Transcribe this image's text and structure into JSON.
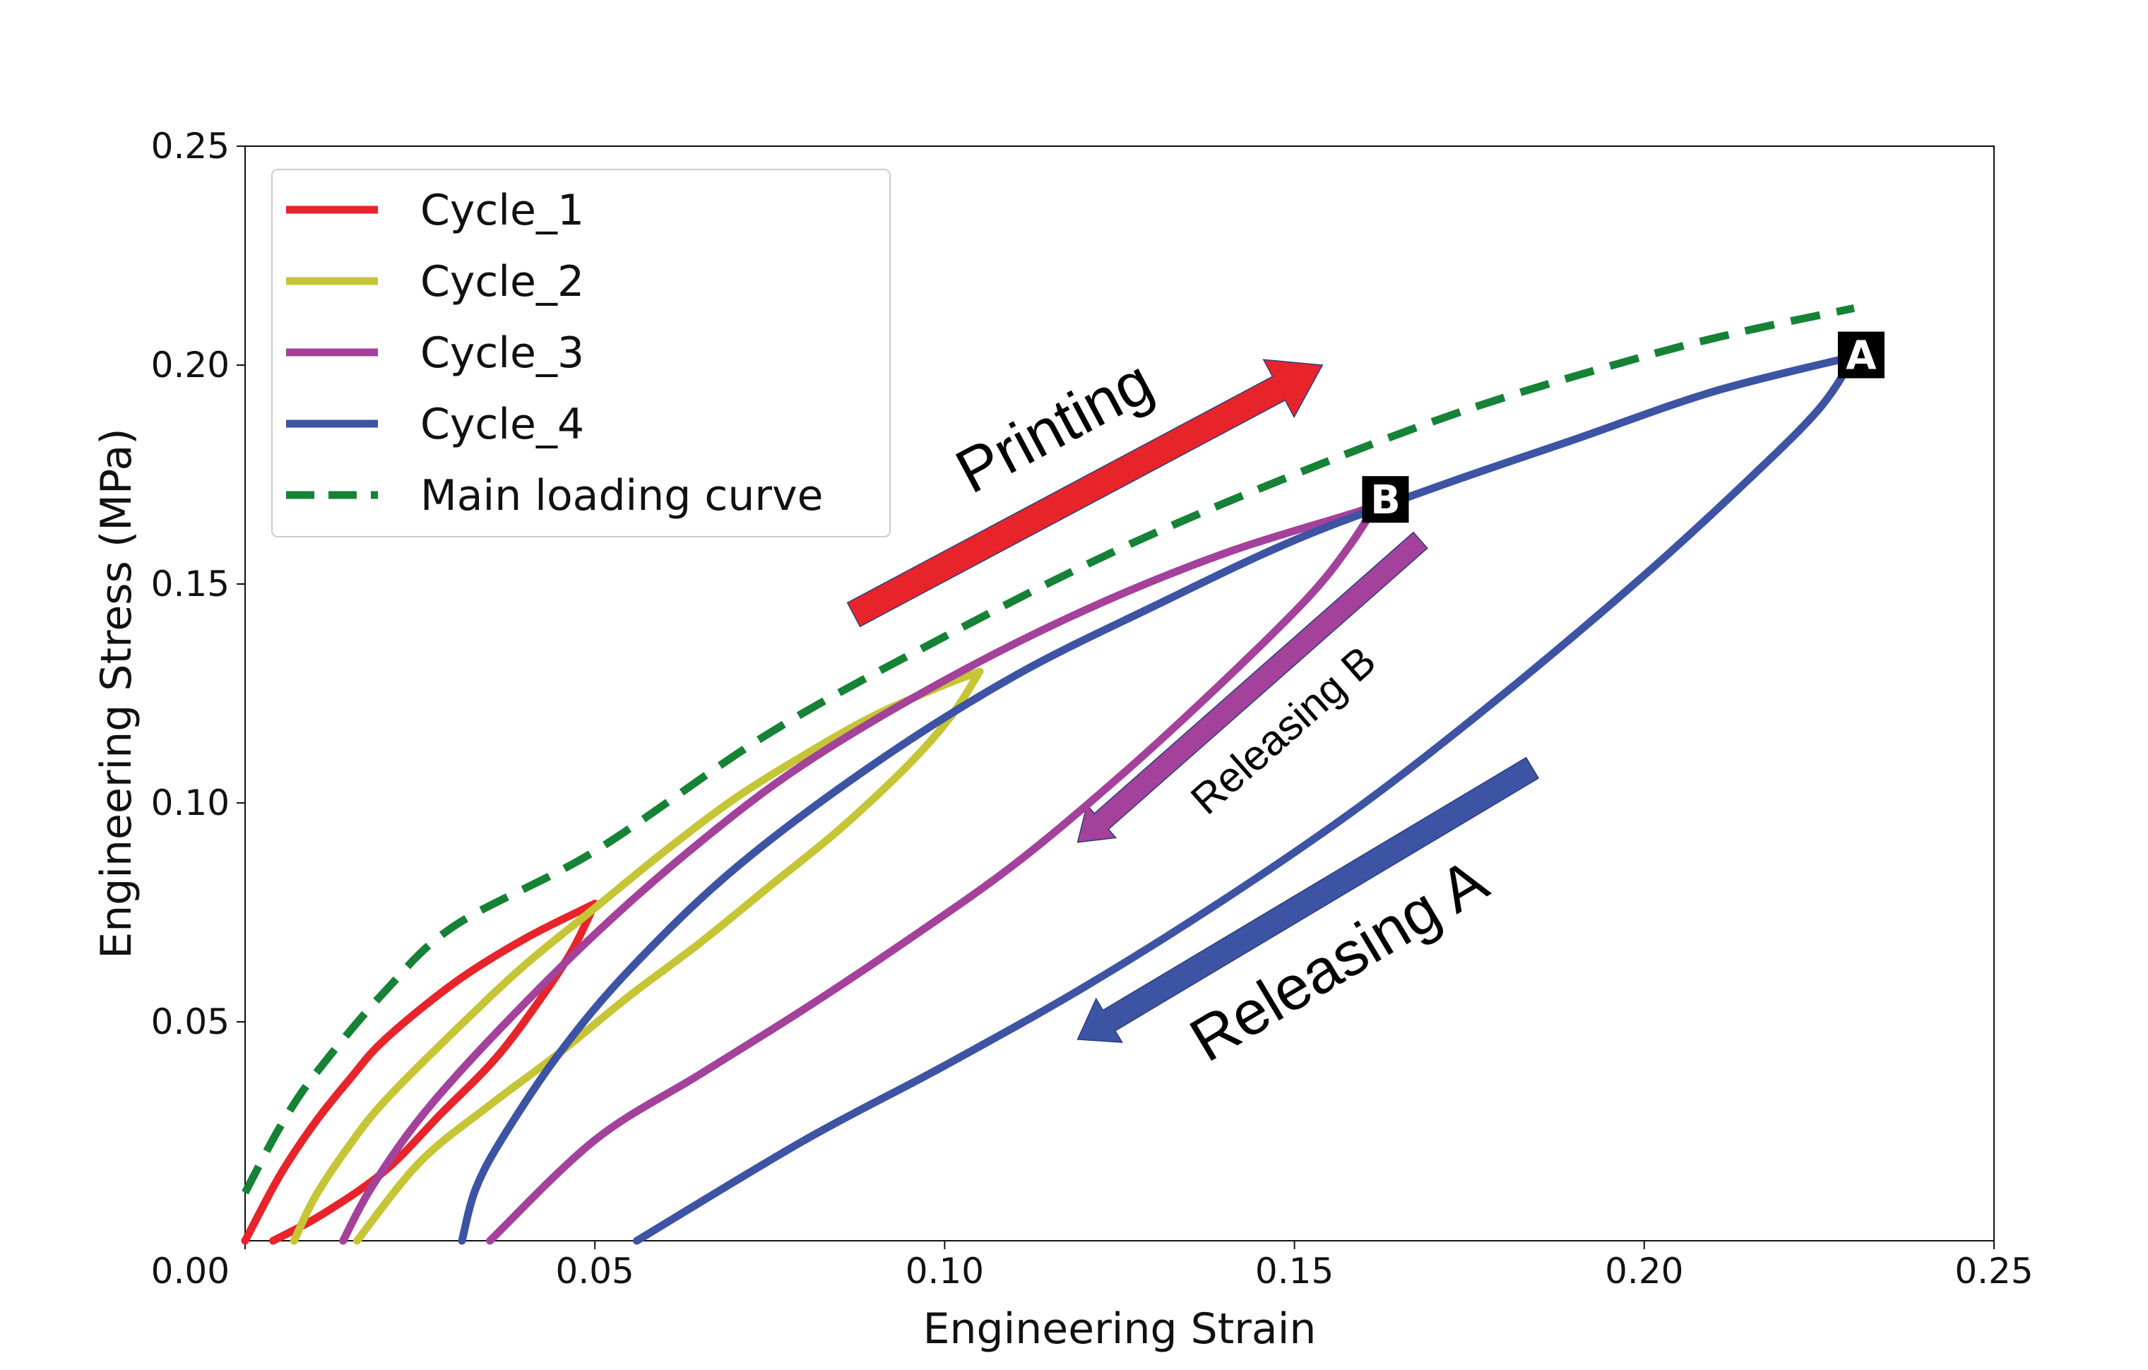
{
  "chart_data": {
    "type": "line",
    "title": "",
    "xlabel": "Engineering Strain",
    "ylabel": "Engineering Stress (MPa)",
    "xlim": [
      0,
      0.25
    ],
    "ylim": [
      0,
      0.25
    ],
    "xticks": [
      {
        "value": 0.05,
        "label": "0.05"
      },
      {
        "value": 0.1,
        "label": "0.10"
      },
      {
        "value": 0.15,
        "label": "0.15"
      },
      {
        "value": 0.2,
        "label": "0.20"
      },
      {
        "value": 0.25,
        "label": "0.25"
      }
    ],
    "yticks": [
      {
        "value": 0.05,
        "label": "0.05"
      },
      {
        "value": 0.1,
        "label": "0.10"
      },
      {
        "value": 0.15,
        "label": "0.15"
      },
      {
        "value": 0.2,
        "label": "0.20"
      },
      {
        "value": 0.25,
        "label": "0.25"
      }
    ],
    "origin_label": "0.00",
    "grid": false,
    "legend_position": "top-left",
    "series": [
      {
        "name": "Cycle_1",
        "color": "#e8242b",
        "style": "solid",
        "loading": [
          [
            0.0,
            0.0
          ],
          [
            0.005,
            0.015
          ],
          [
            0.01,
            0.027
          ],
          [
            0.015,
            0.037
          ],
          [
            0.02,
            0.046
          ],
          [
            0.03,
            0.059
          ],
          [
            0.04,
            0.069
          ],
          [
            0.05,
            0.077
          ]
        ],
        "unloading": [
          [
            0.05,
            0.077
          ],
          [
            0.047,
            0.067
          ],
          [
            0.043,
            0.057
          ],
          [
            0.036,
            0.042
          ],
          [
            0.028,
            0.029
          ],
          [
            0.02,
            0.016
          ],
          [
            0.011,
            0.006
          ],
          [
            0.004,
            0.0
          ]
        ]
      },
      {
        "name": "Cycle_2",
        "color": "#c5c536",
        "style": "solid",
        "loading": [
          [
            0.007,
            0.0
          ],
          [
            0.01,
            0.01
          ],
          [
            0.015,
            0.022
          ],
          [
            0.02,
            0.032
          ],
          [
            0.03,
            0.048
          ],
          [
            0.04,
            0.063
          ],
          [
            0.05,
            0.076
          ],
          [
            0.06,
            0.089
          ],
          [
            0.07,
            0.101
          ],
          [
            0.08,
            0.111
          ],
          [
            0.09,
            0.12
          ],
          [
            0.1,
            0.127
          ],
          [
            0.105,
            0.13
          ]
        ],
        "unloading": [
          [
            0.105,
            0.13
          ],
          [
            0.101,
            0.12
          ],
          [
            0.095,
            0.109
          ],
          [
            0.085,
            0.094
          ],
          [
            0.075,
            0.081
          ],
          [
            0.065,
            0.068
          ],
          [
            0.055,
            0.056
          ],
          [
            0.045,
            0.043
          ],
          [
            0.035,
            0.031
          ],
          [
            0.025,
            0.018
          ],
          [
            0.016,
            0.0
          ]
        ]
      },
      {
        "name": "Cycle_3",
        "color": "#a3419b",
        "style": "solid",
        "loading": [
          [
            0.014,
            0.0
          ],
          [
            0.018,
            0.012
          ],
          [
            0.025,
            0.028
          ],
          [
            0.035,
            0.046
          ],
          [
            0.05,
            0.07
          ],
          [
            0.065,
            0.091
          ],
          [
            0.08,
            0.109
          ],
          [
            0.1,
            0.128
          ],
          [
            0.12,
            0.144
          ],
          [
            0.14,
            0.157
          ],
          [
            0.16,
            0.167
          ],
          [
            0.162,
            0.169
          ]
        ],
        "unloading": [
          [
            0.162,
            0.169
          ],
          [
            0.158,
            0.159
          ],
          [
            0.152,
            0.147
          ],
          [
            0.14,
            0.128
          ],
          [
            0.125,
            0.106
          ],
          [
            0.11,
            0.086
          ],
          [
            0.095,
            0.069
          ],
          [
            0.08,
            0.053
          ],
          [
            0.065,
            0.038
          ],
          [
            0.05,
            0.023
          ],
          [
            0.035,
            0.0
          ]
        ]
      },
      {
        "name": "Cycle_4",
        "color": "#3d53a3",
        "style": "solid",
        "loading": [
          [
            0.031,
            0.0
          ],
          [
            0.033,
            0.012
          ],
          [
            0.037,
            0.024
          ],
          [
            0.045,
            0.043
          ],
          [
            0.055,
            0.062
          ],
          [
            0.07,
            0.085
          ],
          [
            0.09,
            0.109
          ],
          [
            0.11,
            0.129
          ],
          [
            0.13,
            0.145
          ],
          [
            0.15,
            0.16
          ],
          [
            0.17,
            0.172
          ],
          [
            0.19,
            0.183
          ],
          [
            0.21,
            0.194
          ],
          [
            0.23,
            0.202
          ]
        ],
        "unloading": [
          [
            0.23,
            0.202
          ],
          [
            0.225,
            0.19
          ],
          [
            0.215,
            0.174
          ],
          [
            0.2,
            0.152
          ],
          [
            0.18,
            0.125
          ],
          [
            0.16,
            0.1
          ],
          [
            0.14,
            0.078
          ],
          [
            0.12,
            0.058
          ],
          [
            0.1,
            0.04
          ],
          [
            0.08,
            0.023
          ],
          [
            0.056,
            0.0
          ]
        ]
      },
      {
        "name": "Main loading curve",
        "color": "#168236",
        "style": "dashed",
        "points": [
          [
            0.0,
            0.011
          ],
          [
            0.005,
            0.026
          ],
          [
            0.01,
            0.038
          ],
          [
            0.02,
            0.057
          ],
          [
            0.03,
            0.072
          ],
          [
            0.05,
            0.089
          ],
          [
            0.075,
            0.116
          ],
          [
            0.1,
            0.138
          ],
          [
            0.125,
            0.158
          ],
          [
            0.15,
            0.175
          ],
          [
            0.175,
            0.19
          ],
          [
            0.2,
            0.202
          ],
          [
            0.215,
            0.208
          ],
          [
            0.23,
            0.213
          ]
        ]
      }
    ],
    "markers": [
      {
        "label": "A",
        "x": 0.23,
        "y": 0.202
      },
      {
        "label": "B",
        "x": 0.162,
        "y": 0.169
      }
    ],
    "annotations": [
      {
        "text": "Printing",
        "color": "#e8242b",
        "from": [
          0.087,
          0.143
        ],
        "to": [
          0.154,
          0.2
        ]
      },
      {
        "text": "Releasing B",
        "color": "#a3419b",
        "from": [
          0.168,
          0.16
        ],
        "to": [
          0.119,
          0.091
        ]
      },
      {
        "text": "Releasing A",
        "color": "#3d53a3",
        "from": [
          0.184,
          0.108
        ],
        "to": [
          0.119,
          0.046
        ]
      }
    ]
  }
}
